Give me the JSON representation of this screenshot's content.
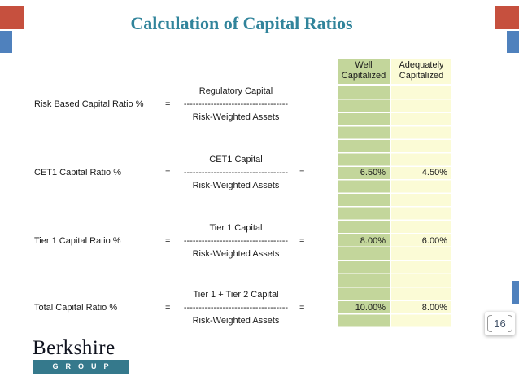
{
  "title": "Calculation of Capital Ratios",
  "page_number": "16",
  "columns": {
    "well": "Well Capitalized",
    "adequately": "Adequately Capitalized"
  },
  "rows": [
    {
      "label": "Risk Based Capital Ratio %",
      "eq": "=",
      "numerator": "Regulatory Capital",
      "divider": "-----------------------------------",
      "denominator": "Risk-Weighted Assets",
      "eq2": "",
      "well": "",
      "adequately": ""
    },
    {
      "label": "CET1 Capital Ratio %",
      "eq": "=",
      "numerator": "CET1 Capital",
      "divider": "-----------------------------------",
      "denominator": "Risk-Weighted Assets",
      "eq2": "=",
      "well": "6.50%",
      "adequately": "4.50%"
    },
    {
      "label": "Tier 1 Capital Ratio %",
      "eq": "=",
      "numerator": "Tier 1 Capital",
      "divider": "-----------------------------------",
      "denominator": "Risk-Weighted Assets",
      "eq2": "=",
      "well": "8.00%",
      "adequately": "6.00%"
    },
    {
      "label": "Total Capital Ratio %",
      "eq": "=",
      "numerator": "Tier 1 + Tier 2 Capital",
      "divider": "-----------------------------------",
      "denominator": "Risk-Weighted Assets",
      "eq2": "=",
      "well": "10.00%",
      "adequately": "8.00%"
    }
  ],
  "logo": {
    "name": "Berkshire",
    "subtitle": "GROUP"
  },
  "colors": {
    "title": "#31849B",
    "accent_red": "#C6503E",
    "accent_blue": "#4F81BD",
    "well_fill": "#C3D69B",
    "adequately_fill": "#FBFBD6",
    "logo_bar": "#35798C"
  }
}
